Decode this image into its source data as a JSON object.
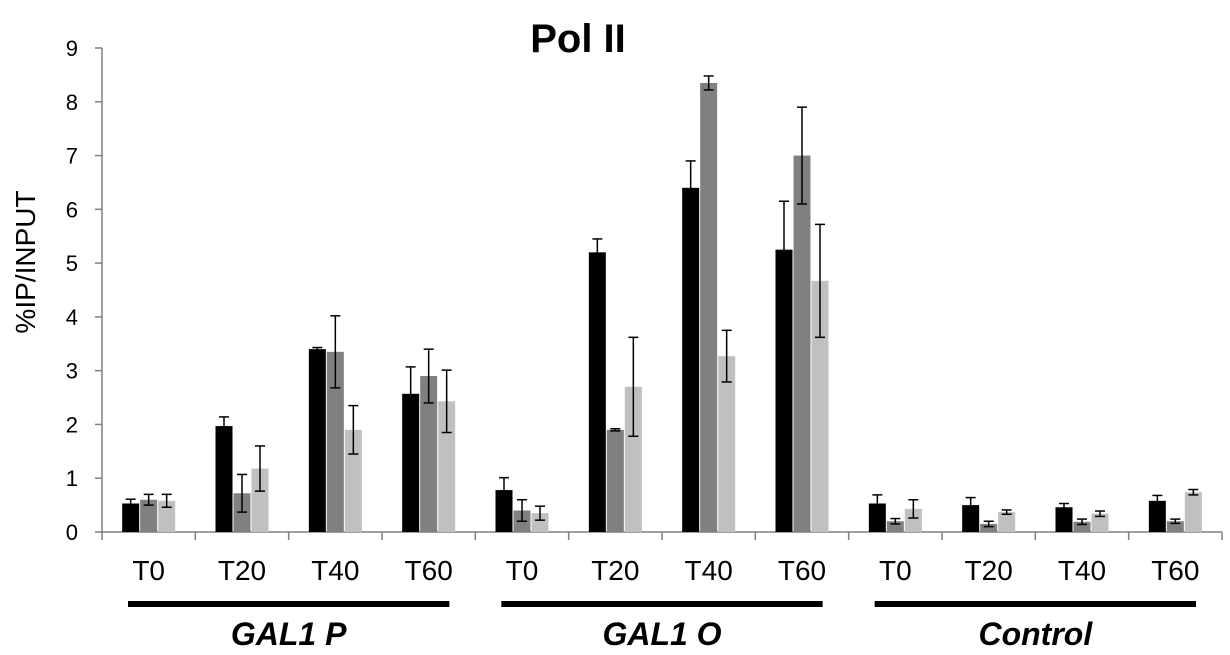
{
  "chart_data": {
    "type": "bar",
    "title": "Pol II",
    "ylabel": "%IP/INPUT",
    "xlabel": "",
    "ylim": [
      0,
      9
    ],
    "yticks": [
      0,
      1,
      2,
      3,
      4,
      5,
      6,
      7,
      8,
      9
    ],
    "grid": false,
    "legend": "none",
    "categories": [
      "T0",
      "T20",
      "T40",
      "T60",
      "T0",
      "T20",
      "T40",
      "T60",
      "T0",
      "T20",
      "T40",
      "T60"
    ],
    "groups": [
      {
        "label": "GAL1 P",
        "start": 0,
        "end": 3
      },
      {
        "label": "GAL1 O",
        "start": 4,
        "end": 7
      },
      {
        "label": "Control",
        "start": 8,
        "end": 11
      }
    ],
    "series": [
      {
        "color": "#000000",
        "values": [
          0.53,
          1.97,
          3.4,
          2.57,
          0.78,
          5.2,
          6.4,
          5.25,
          0.53,
          0.5,
          0.46,
          0.58
        ],
        "errors": [
          0.08,
          0.17,
          0.03,
          0.5,
          0.23,
          0.25,
          0.5,
          0.9,
          0.16,
          0.14,
          0.07,
          0.1
        ]
      },
      {
        "color": "#808080",
        "values": [
          0.6,
          0.72,
          3.35,
          2.9,
          0.4,
          1.9,
          8.35,
          7.0,
          0.2,
          0.15,
          0.19,
          0.2
        ],
        "errors": [
          0.1,
          0.35,
          0.67,
          0.5,
          0.2,
          0.02,
          0.13,
          0.9,
          0.05,
          0.05,
          0.05,
          0.04
        ]
      },
      {
        "color": "#c0c0c0",
        "values": [
          0.58,
          1.18,
          1.9,
          2.43,
          0.35,
          2.7,
          3.27,
          4.67,
          0.43,
          0.37,
          0.34,
          0.74
        ],
        "errors": [
          0.12,
          0.42,
          0.45,
          0.58,
          0.13,
          0.92,
          0.48,
          1.05,
          0.17,
          0.04,
          0.05,
          0.05
        ]
      }
    ]
  }
}
